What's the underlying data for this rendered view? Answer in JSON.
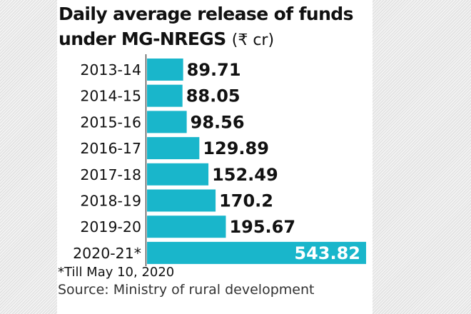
{
  "chart_data": {
    "type": "bar",
    "orientation": "horizontal",
    "title": "Daily average release of funds under MG-NREGS",
    "title_unit": "(₹ cr)",
    "categories": [
      "2013-14",
      "2014-15",
      "2015-16",
      "2016-17",
      "2017-18",
      "2018-19",
      "2019-20",
      "2020-21*"
    ],
    "values": [
      89.71,
      88.05,
      98.56,
      129.89,
      152.49,
      170.2,
      195.67,
      543.82
    ],
    "value_labels": [
      "89.71",
      "88.05",
      "98.56",
      "129.89",
      "152.49",
      "170.2",
      "195.67",
      "543.82"
    ],
    "xlabel": "",
    "ylabel": "",
    "xlim": [
      0,
      543.82
    ],
    "grid": false,
    "legend": "none",
    "bar_color": "#19b6cb",
    "footnote": "*Till May 10, 2020",
    "source": "Source: Ministry of rural development"
  }
}
